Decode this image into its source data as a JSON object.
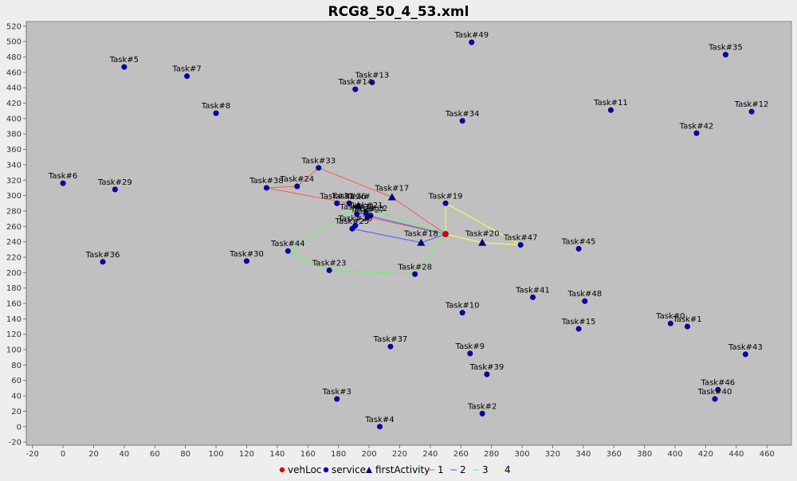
{
  "chart_data": {
    "type": "scatter",
    "title": "RCG8_50_4_53.xml",
    "xlim": [
      -24,
      476
    ],
    "ylim": [
      -24,
      526
    ],
    "xticks": [
      -20,
      0,
      20,
      40,
      60,
      80,
      100,
      120,
      140,
      160,
      180,
      200,
      220,
      240,
      260,
      280,
      300,
      320,
      340,
      360,
      380,
      400,
      420,
      440,
      460
    ],
    "yticks": [
      -20,
      0,
      20,
      40,
      60,
      80,
      100,
      120,
      140,
      160,
      180,
      200,
      220,
      240,
      260,
      280,
      300,
      320,
      340,
      360,
      380,
      400,
      420,
      440,
      460,
      480,
      500,
      520
    ],
    "grid": false,
    "legend_position": "bottom",
    "colors": {
      "plot_bg": "#c0c0c0",
      "service": "#0000cc",
      "vehLoc": "#dd0000",
      "firstActivity": "#000080",
      "route1": "#ff5555",
      "route2": "#5555ff",
      "route3": "#55ff55",
      "route4": "#ffff55"
    },
    "vehLoc": {
      "x": 250,
      "y": 250
    },
    "service": [
      {
        "label": "Task#0",
        "x": 397,
        "y": 134
      },
      {
        "label": "Task#1",
        "x": 408,
        "y": 130
      },
      {
        "label": "Task#2",
        "x": 274,
        "y": 17
      },
      {
        "label": "Task#3",
        "x": 179,
        "y": 36
      },
      {
        "label": "Task#4",
        "x": 207,
        "y": 0
      },
      {
        "label": "Task#5",
        "x": 40,
        "y": 467
      },
      {
        "label": "Task#6",
        "x": 0,
        "y": 316
      },
      {
        "label": "Task#7",
        "x": 81,
        "y": 455
      },
      {
        "label": "Task#8",
        "x": 100,
        "y": 407
      },
      {
        "label": "Task#9",
        "x": 266,
        "y": 95
      },
      {
        "label": "Task#10",
        "x": 261,
        "y": 148
      },
      {
        "label": "Task#11",
        "x": 358,
        "y": 411
      },
      {
        "label": "Task#12",
        "x": 450,
        "y": 409
      },
      {
        "label": "Task#13",
        "x": 202,
        "y": 447
      },
      {
        "label": "Task#14",
        "x": 191,
        "y": 438
      },
      {
        "label": "Task#15",
        "x": 337,
        "y": 127
      },
      {
        "label": "Task#16",
        "x": 187,
        "y": 290
      },
      {
        "label": "Task#19",
        "x": 250,
        "y": 290
      },
      {
        "label": "Task#21",
        "x": 198,
        "y": 278
      },
      {
        "label": "Task#22",
        "x": 201,
        "y": 274
      },
      {
        "label": "Task#23",
        "x": 174,
        "y": 203
      },
      {
        "label": "Task#24",
        "x": 153,
        "y": 312
      },
      {
        "label": "Task#25",
        "x": 189,
        "y": 257
      },
      {
        "label": "Task#26",
        "x": 191,
        "y": 261
      },
      {
        "label": "Task#27",
        "x": 199,
        "y": 272
      },
      {
        "label": "Task#28",
        "x": 230,
        "y": 198
      },
      {
        "label": "Task#29",
        "x": 34,
        "y": 308
      },
      {
        "label": "Task#30",
        "x": 120,
        "y": 215
      },
      {
        "label": "Task#31",
        "x": 179,
        "y": 290
      },
      {
        "label": "Task#32",
        "x": 192,
        "y": 276
      },
      {
        "label": "Task#33",
        "x": 167,
        "y": 336
      },
      {
        "label": "Task#34",
        "x": 261,
        "y": 397
      },
      {
        "label": "Task#35",
        "x": 433,
        "y": 483
      },
      {
        "label": "Task#36",
        "x": 26,
        "y": 214
      },
      {
        "label": "Task#37",
        "x": 214,
        "y": 104
      },
      {
        "label": "Task#38",
        "x": 133,
        "y": 310
      },
      {
        "label": "Task#39",
        "x": 277,
        "y": 68
      },
      {
        "label": "Task#40",
        "x": 426,
        "y": 36
      },
      {
        "label": "Task#41",
        "x": 307,
        "y": 168
      },
      {
        "label": "Task#42",
        "x": 414,
        "y": 381
      },
      {
        "label": "Task#43",
        "x": 446,
        "y": 94
      },
      {
        "label": "Task#44",
        "x": 147,
        "y": 228
      },
      {
        "label": "Task#45",
        "x": 337,
        "y": 231
      },
      {
        "label": "Task#46",
        "x": 428,
        "y": 48
      },
      {
        "label": "Task#47",
        "x": 299,
        "y": 236
      },
      {
        "label": "Task#48",
        "x": 341,
        "y": 163
      },
      {
        "label": "Task#49",
        "x": 267,
        "y": 499
      }
    ],
    "firstActivity": [
      {
        "label": "Task#17",
        "x": 215,
        "y": 298
      },
      {
        "label": "Task#18",
        "x": 234,
        "y": 239
      },
      {
        "label": "Task#20",
        "x": 274,
        "y": 239
      },
      {
        "label": "Task#",
        "x": 193,
        "y": 287
      }
    ],
    "routes": [
      {
        "name": "1",
        "points": [
          [
            250,
            250
          ],
          [
            215,
            298
          ],
          [
            167,
            336
          ],
          [
            153,
            312
          ],
          [
            133,
            310
          ],
          [
            187,
            290
          ],
          [
            199,
            272
          ],
          [
            250,
            250
          ]
        ]
      },
      {
        "name": "2",
        "points": [
          [
            250,
            250
          ],
          [
            191,
            278
          ],
          [
            201,
            274
          ],
          [
            189,
            257
          ],
          [
            234,
            239
          ],
          [
            250,
            250
          ]
        ]
      },
      {
        "name": "3",
        "points": [
          [
            250,
            250
          ],
          [
            193,
            287
          ],
          [
            147,
            228
          ],
          [
            174,
            203
          ],
          [
            230,
            198
          ],
          [
            250,
            250
          ]
        ]
      },
      {
        "name": "4",
        "points": [
          [
            250,
            250
          ],
          [
            250,
            290
          ],
          [
            299,
            236
          ],
          [
            274,
            239
          ],
          [
            250,
            250
          ]
        ]
      }
    ],
    "legend": {
      "vehLoc": "vehLoc",
      "service": "service",
      "firstActivity": "firstActivity",
      "r1": "1",
      "r2": "2",
      "r3": "3",
      "r4": "4"
    }
  }
}
